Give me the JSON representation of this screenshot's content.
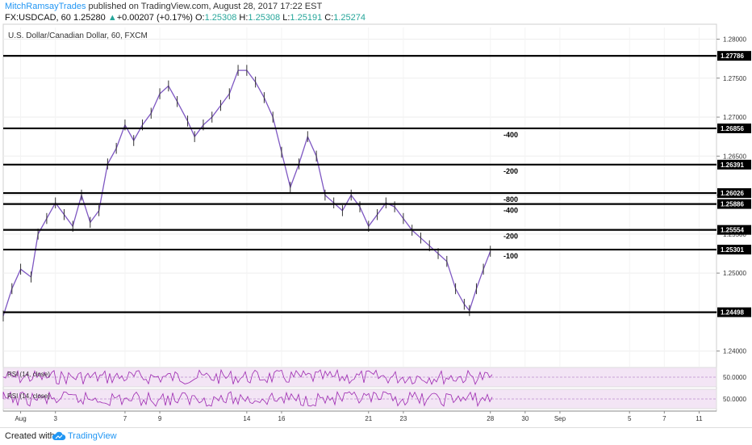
{
  "header": {
    "author": "MitchRamsayTrades",
    "published": " published on TradingView.com, August 28, 2017 17:22 EST",
    "symbol": "FX:USDCAD, 60",
    "last": "1.25280",
    "change_arrow": "▲",
    "change": "+0.00207 (+0.17%)",
    "o_label": "O:",
    "o_value": "1.25308",
    "h_label": "H:",
    "h_value": "1.25308",
    "l_label": "L:",
    "l_value": "1.25191",
    "c_label": "C:",
    "c_value": "1.25274"
  },
  "footer": {
    "created_with": "Created with",
    "brand": "TradingView"
  },
  "colors": {
    "candle": "#7e57c2",
    "level": "#000000",
    "rsi_line": "#9c27b0",
    "rsi_band": "#f3e5f5",
    "brand": "#2196f3",
    "up": "#26a69a"
  },
  "chart_data": {
    "type": "line",
    "title": "U.S. Dollar/Canadian Dollar, 60, FXCM",
    "ylim": [
      1.238,
      1.2815
    ],
    "y_ticks": [
      "1.28000",
      "1.27500",
      "1.27000",
      "1.26500",
      "1.26000",
      "1.25500",
      "1.25000",
      "1.24500",
      "1.24000"
    ],
    "x_day_range": [
      0,
      41
    ],
    "x_ticks": [
      {
        "day": 1,
        "label": "Aug"
      },
      {
        "day": 3,
        "label": "3"
      },
      {
        "day": 7,
        "label": "7"
      },
      {
        "day": 9,
        "label": "9"
      },
      {
        "day": 14,
        "label": "14"
      },
      {
        "day": 16,
        "label": "16"
      },
      {
        "day": 21,
        "label": "21"
      },
      {
        "day": 23,
        "label": "23"
      },
      {
        "day": 28,
        "label": "28"
      },
      {
        "day": 30,
        "label": "30"
      },
      {
        "day": 32,
        "label": "Sep"
      },
      {
        "day": 36,
        "label": "5"
      },
      {
        "day": 38,
        "label": "7"
      },
      {
        "day": 40,
        "label": "11"
      }
    ],
    "levels": [
      {
        "price": 1.27786,
        "label": "1.27786",
        "note": ""
      },
      {
        "price": 1.26856,
        "label": "1.26856",
        "note": "-400"
      },
      {
        "price": 1.26391,
        "label": "1.26391",
        "note": "-200"
      },
      {
        "price": 1.26026,
        "label": "1.26026",
        "note": "-800"
      },
      {
        "price": 1.25886,
        "label": "1.25886",
        "note": "-400"
      },
      {
        "price": 1.25554,
        "label": "1.25554",
        "note": "-200"
      },
      {
        "price": 1.25301,
        "label": "1.25301",
        "note": "-100"
      },
      {
        "price": 1.24498,
        "label": "1.24498",
        "note": ""
      }
    ],
    "series": [
      {
        "values": [
          [
            0.0,
            1.2445
          ],
          [
            0.5,
            1.248
          ],
          [
            1.0,
            1.2505
          ],
          [
            1.6,
            1.2495
          ],
          [
            2.0,
            1.255
          ],
          [
            2.5,
            1.257
          ],
          [
            3.0,
            1.259
          ],
          [
            3.5,
            1.2575
          ],
          [
            4.0,
            1.256
          ],
          [
            4.5,
            1.26
          ],
          [
            5.0,
            1.2565
          ],
          [
            5.5,
            1.258
          ],
          [
            6.0,
            1.264
          ],
          [
            6.5,
            1.266
          ],
          [
            7.0,
            1.269
          ],
          [
            7.5,
            1.267
          ],
          [
            8.0,
            1.269
          ],
          [
            8.5,
            1.2705
          ],
          [
            9.0,
            1.273
          ],
          [
            9.5,
            1.274
          ],
          [
            10.0,
            1.272
          ],
          [
            10.6,
            1.2695
          ],
          [
            11.0,
            1.2675
          ],
          [
            11.5,
            1.269
          ],
          [
            12.0,
            1.27
          ],
          [
            12.5,
            1.2715
          ],
          [
            13.0,
            1.273
          ],
          [
            13.5,
            1.276
          ],
          [
            14.0,
            1.276
          ],
          [
            14.5,
            1.2745
          ],
          [
            15.0,
            1.2725
          ],
          [
            15.5,
            1.27
          ],
          [
            16.0,
            1.2655
          ],
          [
            16.5,
            1.261
          ],
          [
            17.0,
            1.264
          ],
          [
            17.5,
            1.2675
          ],
          [
            18.0,
            1.265
          ],
          [
            18.5,
            1.26
          ],
          [
            19.0,
            1.259
          ],
          [
            19.5,
            1.258
          ],
          [
            20.0,
            1.26
          ],
          [
            20.5,
            1.2585
          ],
          [
            21.0,
            1.256
          ],
          [
            21.5,
            1.2575
          ],
          [
            22.0,
            1.259
          ],
          [
            22.5,
            1.2585
          ],
          [
            23.0,
            1.257
          ],
          [
            23.5,
            1.2555
          ],
          [
            24.0,
            1.2545
          ],
          [
            24.5,
            1.2535
          ],
          [
            25.0,
            1.2525
          ],
          [
            25.5,
            1.2515
          ],
          [
            26.0,
            1.248
          ],
          [
            26.5,
            1.246
          ],
          [
            26.8,
            1.2452
          ],
          [
            27.2,
            1.248
          ],
          [
            27.6,
            1.2505
          ],
          [
            28.0,
            1.2528
          ]
        ]
      }
    ],
    "rsi_panels": [
      {
        "label": "RSI (14, close)",
        "value": "50.0000"
      },
      {
        "label": "RSI (14, close)",
        "value": "50.0000"
      }
    ]
  }
}
